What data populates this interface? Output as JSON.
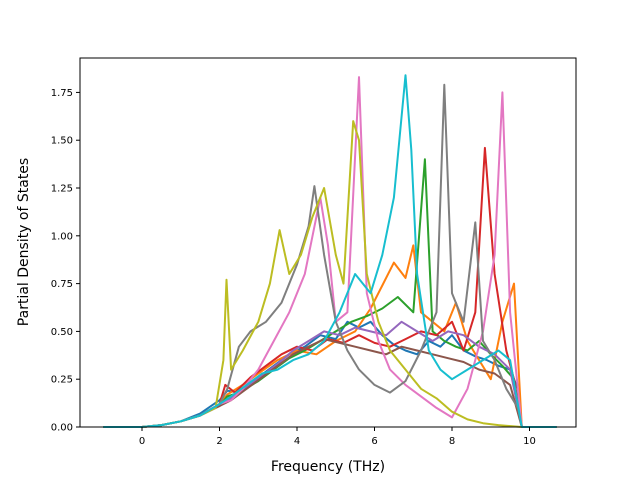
{
  "chart_data": {
    "type": "line",
    "title": "",
    "xlabel": "Frequency (THz)",
    "ylabel": "Partial Density of States",
    "xlim": [
      -1.6,
      11.2
    ],
    "ylim": [
      0.0,
      1.93
    ],
    "xticks": [
      0,
      2,
      4,
      6,
      8,
      10
    ],
    "yticks": [
      0.0,
      0.25,
      0.5,
      0.75,
      1.0,
      1.25,
      1.5,
      1.75
    ],
    "xtick_labels": [
      "0",
      "2",
      "4",
      "6",
      "8",
      "10"
    ],
    "ytick_labels": [
      "0.00",
      "0.25",
      "0.50",
      "0.75",
      "1.00",
      "1.25",
      "1.50",
      "1.75"
    ],
    "grid": false,
    "legend": "none",
    "series": [
      {
        "color": "#1f77b4",
        "points": [
          [
            -1.0,
            0
          ],
          [
            0,
            0.0
          ],
          [
            0.5,
            0.01
          ],
          [
            1.0,
            0.03
          ],
          [
            1.5,
            0.07
          ],
          [
            2.0,
            0.14
          ],
          [
            2.2,
            0.19
          ],
          [
            2.5,
            0.18
          ],
          [
            3.0,
            0.26
          ],
          [
            3.4,
            0.32
          ],
          [
            3.8,
            0.38
          ],
          [
            4.2,
            0.42
          ],
          [
            4.6,
            0.48
          ],
          [
            5.0,
            0.46
          ],
          [
            5.3,
            0.55
          ],
          [
            5.6,
            0.52
          ],
          [
            5.9,
            0.55
          ],
          [
            6.2,
            0.48
          ],
          [
            6.5,
            0.43
          ],
          [
            6.8,
            0.4
          ],
          [
            7.1,
            0.38
          ],
          [
            7.4,
            0.45
          ],
          [
            7.7,
            0.42
          ],
          [
            8.0,
            0.48
          ],
          [
            8.3,
            0.4
          ],
          [
            8.6,
            0.37
          ],
          [
            8.9,
            0.35
          ],
          [
            9.2,
            0.32
          ],
          [
            9.5,
            0.3
          ],
          [
            9.7,
            0.2
          ],
          [
            9.8,
            0
          ],
          [
            10.7,
            0
          ]
        ]
      },
      {
        "color": "#ff7f0e",
        "points": [
          [
            -1.0,
            0
          ],
          [
            0,
            0.0
          ],
          [
            0.5,
            0.01
          ],
          [
            1.0,
            0.03
          ],
          [
            1.5,
            0.06
          ],
          [
            2.0,
            0.12
          ],
          [
            2.2,
            0.17
          ],
          [
            2.6,
            0.22
          ],
          [
            3.0,
            0.28
          ],
          [
            3.5,
            0.35
          ],
          [
            4.0,
            0.4
          ],
          [
            4.5,
            0.38
          ],
          [
            5.0,
            0.45
          ],
          [
            5.5,
            0.5
          ],
          [
            5.9,
            0.62
          ],
          [
            6.2,
            0.74
          ],
          [
            6.5,
            0.86
          ],
          [
            6.8,
            0.78
          ],
          [
            7.0,
            0.95
          ],
          [
            7.2,
            0.6
          ],
          [
            7.5,
            0.55
          ],
          [
            7.8,
            0.5
          ],
          [
            8.1,
            0.65
          ],
          [
            8.4,
            0.45
          ],
          [
            8.7,
            0.35
          ],
          [
            9.0,
            0.25
          ],
          [
            9.3,
            0.55
          ],
          [
            9.6,
            0.75
          ],
          [
            9.8,
            0
          ],
          [
            10.7,
            0
          ]
        ]
      },
      {
        "color": "#2ca02c",
        "points": [
          [
            -1.0,
            0
          ],
          [
            0,
            0.0
          ],
          [
            0.5,
            0.01
          ],
          [
            1.0,
            0.03
          ],
          [
            1.5,
            0.06
          ],
          [
            2.0,
            0.11
          ],
          [
            2.2,
            0.16
          ],
          [
            2.5,
            0.18
          ],
          [
            3.0,
            0.24
          ],
          [
            3.4,
            0.3
          ],
          [
            3.8,
            0.36
          ],
          [
            4.2,
            0.4
          ],
          [
            4.6,
            0.45
          ],
          [
            5.0,
            0.5
          ],
          [
            5.4,
            0.55
          ],
          [
            5.8,
            0.58
          ],
          [
            6.2,
            0.62
          ],
          [
            6.6,
            0.68
          ],
          [
            7.0,
            0.6
          ],
          [
            7.3,
            1.4
          ],
          [
            7.5,
            0.5
          ],
          [
            7.8,
            0.45
          ],
          [
            8.1,
            0.42
          ],
          [
            8.4,
            0.4
          ],
          [
            8.7,
            0.45
          ],
          [
            9.0,
            0.38
          ],
          [
            9.3,
            0.32
          ],
          [
            9.6,
            0.25
          ],
          [
            9.8,
            0
          ],
          [
            10.7,
            0
          ]
        ]
      },
      {
        "color": "#d62728",
        "points": [
          [
            -1.0,
            0
          ],
          [
            0,
            0.0
          ],
          [
            0.5,
            0.01
          ],
          [
            1.0,
            0.03
          ],
          [
            1.5,
            0.06
          ],
          [
            2.0,
            0.12
          ],
          [
            2.15,
            0.22
          ],
          [
            2.4,
            0.18
          ],
          [
            2.8,
            0.26
          ],
          [
            3.2,
            0.32
          ],
          [
            3.6,
            0.38
          ],
          [
            4.0,
            0.42
          ],
          [
            4.4,
            0.4
          ],
          [
            4.8,
            0.46
          ],
          [
            5.2,
            0.44
          ],
          [
            5.6,
            0.48
          ],
          [
            6.0,
            0.44
          ],
          [
            6.4,
            0.42
          ],
          [
            6.8,
            0.46
          ],
          [
            7.2,
            0.5
          ],
          [
            7.6,
            0.48
          ],
          [
            8.0,
            0.55
          ],
          [
            8.3,
            0.4
          ],
          [
            8.6,
            0.6
          ],
          [
            8.85,
            1.46
          ],
          [
            9.1,
            0.8
          ],
          [
            9.4,
            0.4
          ],
          [
            9.6,
            0.25
          ],
          [
            9.8,
            0
          ],
          [
            10.7,
            0
          ]
        ]
      },
      {
        "color": "#9467bd",
        "points": [
          [
            -1.0,
            0
          ],
          [
            0,
            0.0
          ],
          [
            0.5,
            0.01
          ],
          [
            1.0,
            0.03
          ],
          [
            1.5,
            0.06
          ],
          [
            2.0,
            0.11
          ],
          [
            2.3,
            0.15
          ],
          [
            2.7,
            0.21
          ],
          [
            3.1,
            0.27
          ],
          [
            3.5,
            0.33
          ],
          [
            3.9,
            0.4
          ],
          [
            4.3,
            0.45
          ],
          [
            4.7,
            0.5
          ],
          [
            5.1,
            0.48
          ],
          [
            5.5,
            0.52
          ],
          [
            5.9,
            0.5
          ],
          [
            6.3,
            0.48
          ],
          [
            6.7,
            0.55
          ],
          [
            7.1,
            0.5
          ],
          [
            7.5,
            0.45
          ],
          [
            7.9,
            0.5
          ],
          [
            8.3,
            0.48
          ],
          [
            8.7,
            0.42
          ],
          [
            9.1,
            0.38
          ],
          [
            9.5,
            0.3
          ],
          [
            9.8,
            0
          ],
          [
            10.7,
            0
          ]
        ]
      },
      {
        "color": "#8c564b",
        "points": [
          [
            -1.0,
            0
          ],
          [
            0,
            0.0
          ],
          [
            0.5,
            0.01
          ],
          [
            1.0,
            0.03
          ],
          [
            1.5,
            0.06
          ],
          [
            2.0,
            0.11
          ],
          [
            2.3,
            0.14
          ],
          [
            2.7,
            0.2
          ],
          [
            3.1,
            0.26
          ],
          [
            3.5,
            0.32
          ],
          [
            3.9,
            0.38
          ],
          [
            4.3,
            0.42
          ],
          [
            4.7,
            0.46
          ],
          [
            5.1,
            0.44
          ],
          [
            5.5,
            0.42
          ],
          [
            5.9,
            0.4
          ],
          [
            6.3,
            0.38
          ],
          [
            6.7,
            0.42
          ],
          [
            7.1,
            0.4
          ],
          [
            7.5,
            0.38
          ],
          [
            7.9,
            0.36
          ],
          [
            8.3,
            0.34
          ],
          [
            8.7,
            0.3
          ],
          [
            9.1,
            0.28
          ],
          [
            9.5,
            0.22
          ],
          [
            9.8,
            0
          ],
          [
            10.7,
            0
          ]
        ]
      },
      {
        "color": "#e377c2",
        "points": [
          [
            -1.0,
            0
          ],
          [
            0,
            0.0
          ],
          [
            0.5,
            0.01
          ],
          [
            1.0,
            0.03
          ],
          [
            1.5,
            0.06
          ],
          [
            2.0,
            0.12
          ],
          [
            2.3,
            0.14
          ],
          [
            2.6,
            0.2
          ],
          [
            3.0,
            0.3
          ],
          [
            3.4,
            0.45
          ],
          [
            3.8,
            0.6
          ],
          [
            4.2,
            0.8
          ],
          [
            4.6,
            1.2
          ],
          [
            4.8,
            0.95
          ],
          [
            5.0,
            0.55
          ],
          [
            5.3,
            0.6
          ],
          [
            5.6,
            1.83
          ],
          [
            5.8,
            0.7
          ],
          [
            6.1,
            0.45
          ],
          [
            6.4,
            0.3
          ],
          [
            6.8,
            0.22
          ],
          [
            7.2,
            0.16
          ],
          [
            7.6,
            0.1
          ],
          [
            8.0,
            0.05
          ],
          [
            8.4,
            0.2
          ],
          [
            8.8,
            0.5
          ],
          [
            9.1,
            0.9
          ],
          [
            9.3,
            1.75
          ],
          [
            9.5,
            0.6
          ],
          [
            9.8,
            0
          ],
          [
            10.7,
            0
          ]
        ]
      },
      {
        "color": "#7f7f7f",
        "points": [
          [
            -1.0,
            0
          ],
          [
            0,
            0.0
          ],
          [
            0.5,
            0.01
          ],
          [
            1.0,
            0.03
          ],
          [
            1.5,
            0.06
          ],
          [
            2.0,
            0.12
          ],
          [
            2.2,
            0.2
          ],
          [
            2.5,
            0.42
          ],
          [
            2.8,
            0.5
          ],
          [
            3.2,
            0.55
          ],
          [
            3.6,
            0.65
          ],
          [
            4.0,
            0.85
          ],
          [
            4.3,
            1.05
          ],
          [
            4.45,
            1.26
          ],
          [
            4.7,
            0.9
          ],
          [
            5.0,
            0.55
          ],
          [
            5.3,
            0.4
          ],
          [
            5.6,
            0.3
          ],
          [
            6.0,
            0.22
          ],
          [
            6.4,
            0.18
          ],
          [
            6.8,
            0.24
          ],
          [
            7.2,
            0.4
          ],
          [
            7.6,
            0.6
          ],
          [
            7.8,
            1.79
          ],
          [
            8.0,
            0.7
          ],
          [
            8.3,
            0.55
          ],
          [
            8.6,
            1.07
          ],
          [
            8.8,
            0.45
          ],
          [
            9.1,
            0.35
          ],
          [
            9.4,
            0.2
          ],
          [
            9.7,
            0.1
          ],
          [
            9.8,
            0
          ],
          [
            10.7,
            0
          ]
        ]
      },
      {
        "color": "#bcbd22",
        "points": [
          [
            -1.0,
            0
          ],
          [
            0,
            0.0
          ],
          [
            0.5,
            0.01
          ],
          [
            1.0,
            0.03
          ],
          [
            1.5,
            0.06
          ],
          [
            1.9,
            0.1
          ],
          [
            2.1,
            0.35
          ],
          [
            2.18,
            0.77
          ],
          [
            2.3,
            0.3
          ],
          [
            2.6,
            0.4
          ],
          [
            3.0,
            0.55
          ],
          [
            3.3,
            0.75
          ],
          [
            3.55,
            1.03
          ],
          [
            3.8,
            0.8
          ],
          [
            4.1,
            0.9
          ],
          [
            4.4,
            1.1
          ],
          [
            4.7,
            1.25
          ],
          [
            5.0,
            0.9
          ],
          [
            5.2,
            0.75
          ],
          [
            5.45,
            1.6
          ],
          [
            5.6,
            1.5
          ],
          [
            5.8,
            0.8
          ],
          [
            6.1,
            0.55
          ],
          [
            6.4,
            0.4
          ],
          [
            6.8,
            0.3
          ],
          [
            7.2,
            0.2
          ],
          [
            7.6,
            0.15
          ],
          [
            8.0,
            0.08
          ],
          [
            8.4,
            0.04
          ],
          [
            8.8,
            0.02
          ],
          [
            9.2,
            0.01
          ],
          [
            9.8,
            0
          ],
          [
            10.7,
            0
          ]
        ]
      },
      {
        "color": "#17becf",
        "points": [
          [
            -1.0,
            0
          ],
          [
            0,
            0.0
          ],
          [
            0.5,
            0.01
          ],
          [
            1.0,
            0.03
          ],
          [
            1.5,
            0.06
          ],
          [
            2.0,
            0.12
          ],
          [
            2.3,
            0.16
          ],
          [
            2.7,
            0.22
          ],
          [
            3.1,
            0.28
          ],
          [
            3.5,
            0.3
          ],
          [
            3.9,
            0.35
          ],
          [
            4.3,
            0.38
          ],
          [
            4.7,
            0.45
          ],
          [
            5.1,
            0.6
          ],
          [
            5.5,
            0.8
          ],
          [
            5.9,
            0.7
          ],
          [
            6.2,
            0.9
          ],
          [
            6.5,
            1.2
          ],
          [
            6.8,
            1.84
          ],
          [
            6.95,
            1.45
          ],
          [
            7.1,
            0.8
          ],
          [
            7.4,
            0.4
          ],
          [
            7.7,
            0.3
          ],
          [
            8.0,
            0.25
          ],
          [
            8.4,
            0.3
          ],
          [
            8.8,
            0.35
          ],
          [
            9.2,
            0.4
          ],
          [
            9.5,
            0.35
          ],
          [
            9.8,
            0
          ],
          [
            10.7,
            0
          ]
        ]
      }
    ]
  }
}
